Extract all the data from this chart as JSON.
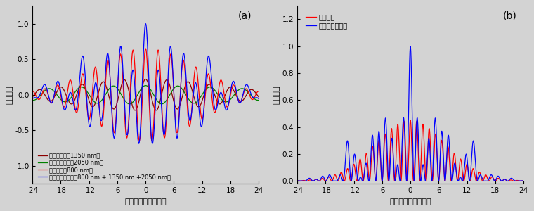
{
  "t_min": -24,
  "t_max": 24,
  "n_points": 5000,
  "pump_wavelength_nm": 800,
  "signal_wavelength_nm": 1350,
  "idler_wavelength_nm": 2050,
  "pump_fwhm_fs": 25,
  "signal_fwhm_fs": 36,
  "idler_fwhm_fs": 55,
  "pump_amp": 0.65,
  "signal_amp": 0.22,
  "idler_amp": 0.13,
  "pump_color": "#ff0000",
  "signal_color": "#8b0000",
  "idler_color": "#008000",
  "synth_color": "#0000ff",
  "panel_a_label": "(a)",
  "panel_b_label": "(b)",
  "ylabel_a": "電場振幅",
  "ylabel_b": "電場強度",
  "xlabel": "時間（フェムト秒）",
  "legend_pump": "ポンプ光（800 nm）",
  "legend_signal": "シグナル光（1350 nm）",
  "legend_idler": "アイドラー光（2050 nm）",
  "legend_synth": "合成レーザー光（800 nm + 1350 nm +2050 nm）",
  "legend_pump_b": "ポンプ光",
  "legend_synth_b": "合成レーザー光",
  "ylim_a": [
    -1.25,
    1.25
  ],
  "ylim_b": [
    -0.02,
    1.3
  ],
  "yticks_a": [
    -1.0,
    -0.5,
    0.0,
    0.5,
    1.0
  ],
  "yticks_b": [
    0.0,
    0.2,
    0.4,
    0.6,
    0.8,
    1.0,
    1.2
  ],
  "xticks": [
    -24,
    -18,
    -12,
    -6,
    0,
    6,
    12,
    18,
    24
  ],
  "bg_color": "#d3d3d3",
  "linewidth": 0.9,
  "fig_width": 7.6,
  "fig_height": 3.0,
  "dpi": 100
}
